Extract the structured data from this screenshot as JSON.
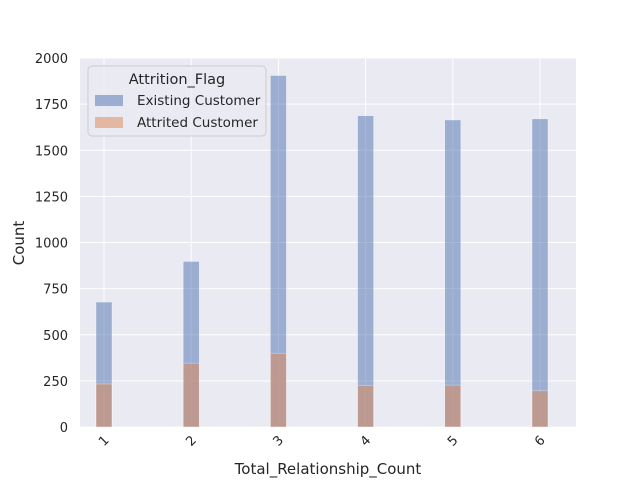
{
  "chart_data": {
    "type": "histogram",
    "xlabel": "Total_Relationship_Count",
    "ylabel": "Count",
    "categories": [
      "1",
      "2",
      "3",
      "4",
      "5",
      "6"
    ],
    "x_values": [
      1,
      2,
      3,
      4,
      5,
      6
    ],
    "ylim": [
      0,
      2000
    ],
    "y_ticks": [
      "0",
      "250",
      "500",
      "750",
      "1000",
      "1250",
      "1500",
      "1750",
      "2000"
    ],
    "grid": true,
    "legend": {
      "title": "Attrition_Flag",
      "placement": "top-left"
    },
    "series": [
      {
        "name": "Existing Customer",
        "color": "#4c72b0",
        "values": [
          677,
          897,
          1905,
          1687,
          1664,
          1670
        ]
      },
      {
        "name": "Attrited Customer",
        "color": "#dd8452",
        "values": [
          233,
          346,
          400,
          225,
          227,
          196
        ]
      }
    ]
  }
}
